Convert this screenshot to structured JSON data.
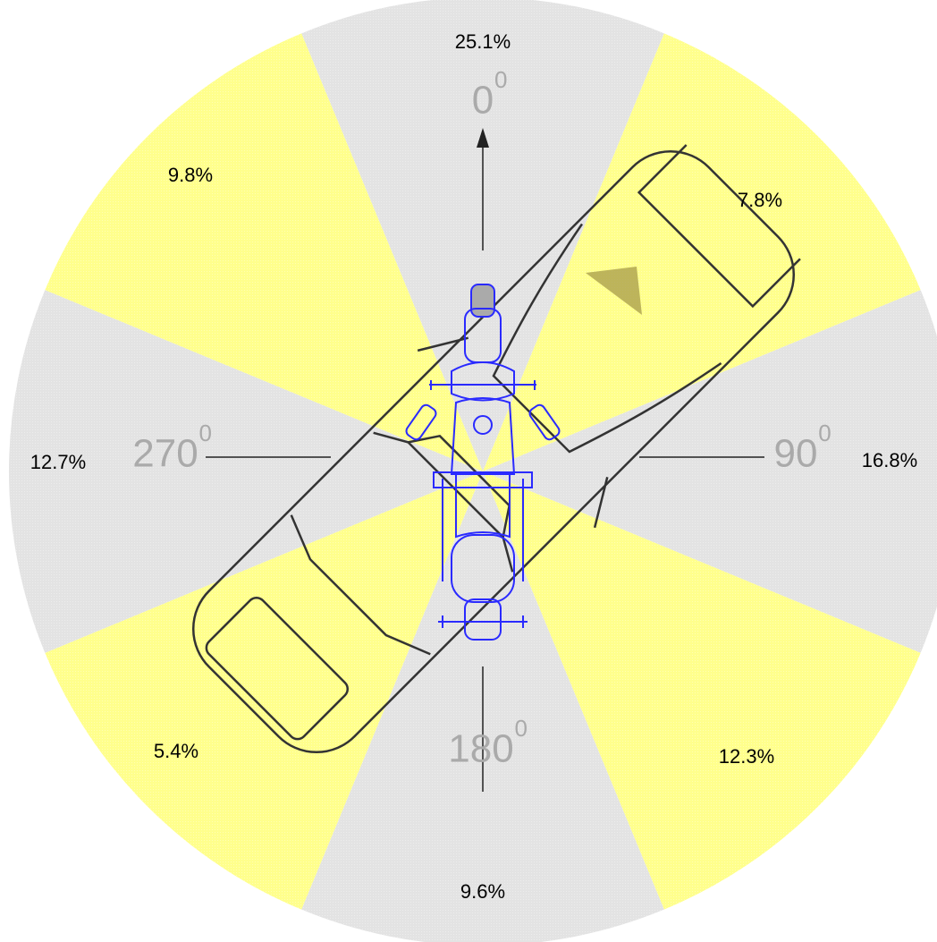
{
  "sectors": [
    {
      "label": "25.1%"
    },
    {
      "label": "7.8%"
    },
    {
      "label": "16.8%"
    },
    {
      "label": "12.3%"
    },
    {
      "label": "9.6%"
    },
    {
      "label": "5.4%"
    },
    {
      "label": "12.7%"
    },
    {
      "label": "9.8%"
    }
  ],
  "angles": [
    {
      "label": "0",
      "degree_mark": "0"
    },
    {
      "label": "90",
      "degree_mark": "0"
    },
    {
      "label": "180",
      "degree_mark": "0"
    },
    {
      "label": "270",
      "degree_mark": "0"
    }
  ]
}
